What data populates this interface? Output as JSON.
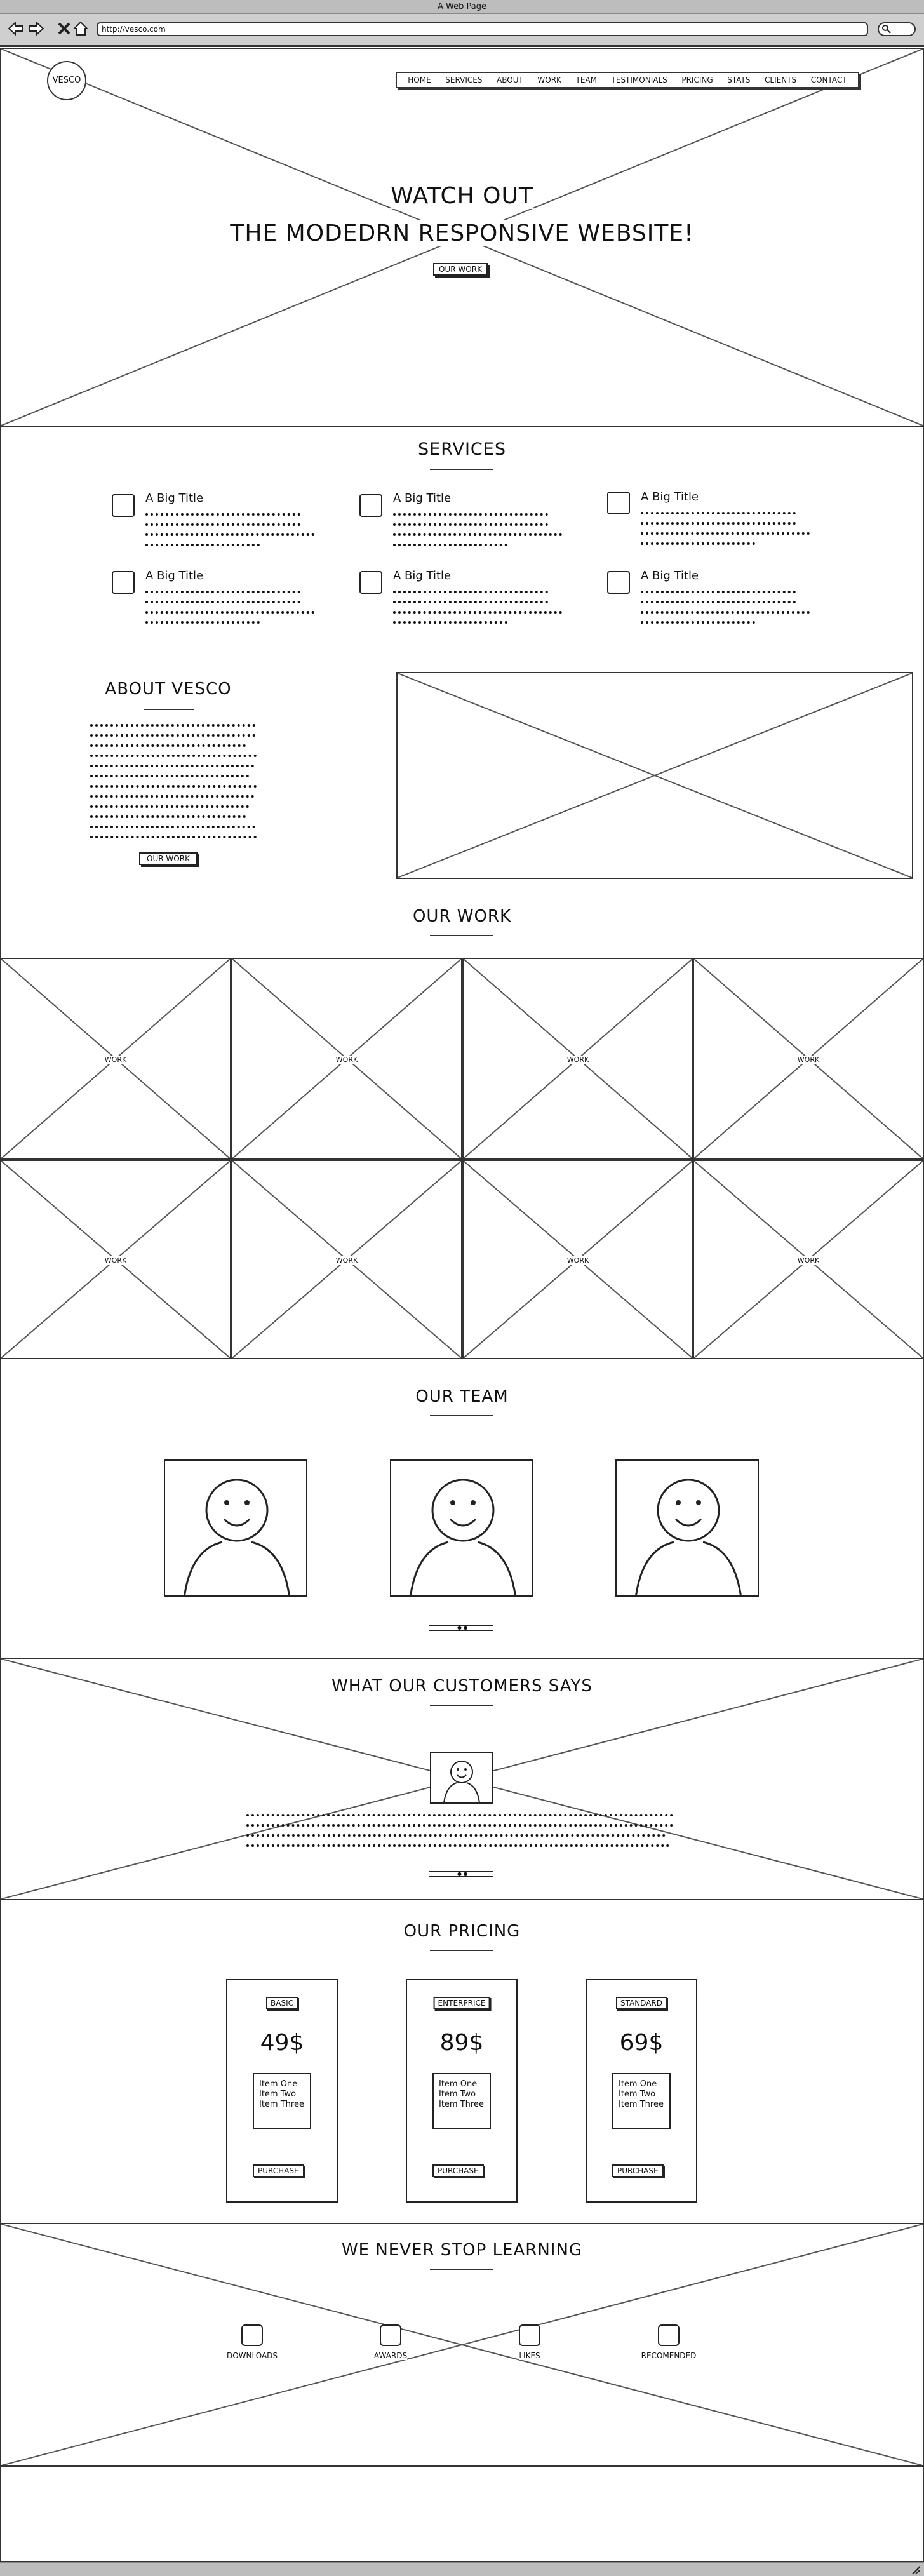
{
  "browser": {
    "window_title": "A Web Page",
    "url": "http://vesco.com"
  },
  "hero": {
    "logo": "VESCO",
    "menu": [
      "HOME",
      "SERVICES",
      "ABOUT",
      "WORK",
      "TEAM",
      "TESTIMONIALS",
      "PRICING",
      "STATS",
      "CLIENTS",
      "CONTACT"
    ],
    "title_line1": "WATCH OUT",
    "title_line2": "THE MODEDRN RESPONSIVE WEBSITE!",
    "button": "OUR WORK"
  },
  "services": {
    "title": "SERVICES",
    "items": [
      {
        "title": "A Big Title"
      },
      {
        "title": "A Big Title"
      },
      {
        "title": "A Big Title"
      },
      {
        "title": "A Big Title"
      },
      {
        "title": "A Big Title"
      },
      {
        "title": "A Big Title"
      }
    ]
  },
  "about": {
    "title": "ABOUT VESCO",
    "button": "OUR WORK"
  },
  "work": {
    "title": "OUR WORK",
    "tile_label": "WORK"
  },
  "team": {
    "title": "OUR TEAM"
  },
  "testimonials": {
    "title": "WHAT OUR CUSTOMERS SAYS"
  },
  "pricing": {
    "title": "OUR PRICING",
    "plans": [
      {
        "name": "BASIC",
        "price": "49$",
        "items": [
          "Item One",
          "Item Two",
          "Item Three"
        ],
        "button": "PURCHASE"
      },
      {
        "name": "ENTERPRICE",
        "price": "89$",
        "items": [
          "Item One",
          "Item Two",
          "Item Three"
        ],
        "button": "PURCHASE"
      },
      {
        "name": "STANDARD",
        "price": "69$",
        "items": [
          "Item One",
          "Item Two",
          "Item Three"
        ],
        "button": "PURCHASE"
      }
    ]
  },
  "stats": {
    "title": "WE NEVER STOP LEARNING",
    "items": [
      "DOWNLOADS",
      "AWARDS",
      "LIKES",
      "RECOMENDED"
    ]
  }
}
